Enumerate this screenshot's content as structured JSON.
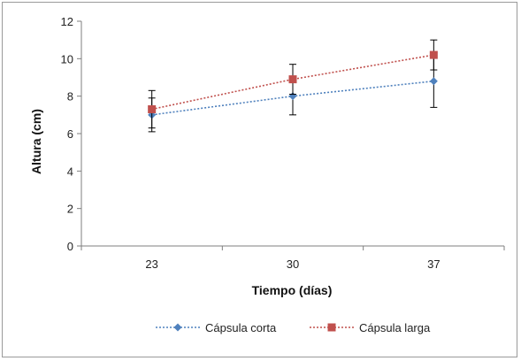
{
  "chart_data": {
    "type": "line",
    "xlabel": "Tiempo (días)",
    "ylabel": "Altura (cm)",
    "categories": [
      "23",
      "30",
      "37"
    ],
    "ylim": [
      0,
      12
    ],
    "yticks": [
      "0",
      "2",
      "4",
      "6",
      "8",
      "10",
      "12"
    ],
    "grid": false,
    "legend": "bottom",
    "series": [
      {
        "name": "Cápsula corta",
        "values": [
          7.0,
          8.0,
          8.8
        ],
        "error": [
          0.9,
          1.0,
          1.4
        ],
        "color": "#4f81bd",
        "marker": "diamond"
      },
      {
        "name": "Cápsula larga",
        "values": [
          7.3,
          8.9,
          10.2
        ],
        "error": [
          1.0,
          0.8,
          0.8
        ],
        "color": "#c0504d",
        "marker": "square"
      }
    ]
  }
}
